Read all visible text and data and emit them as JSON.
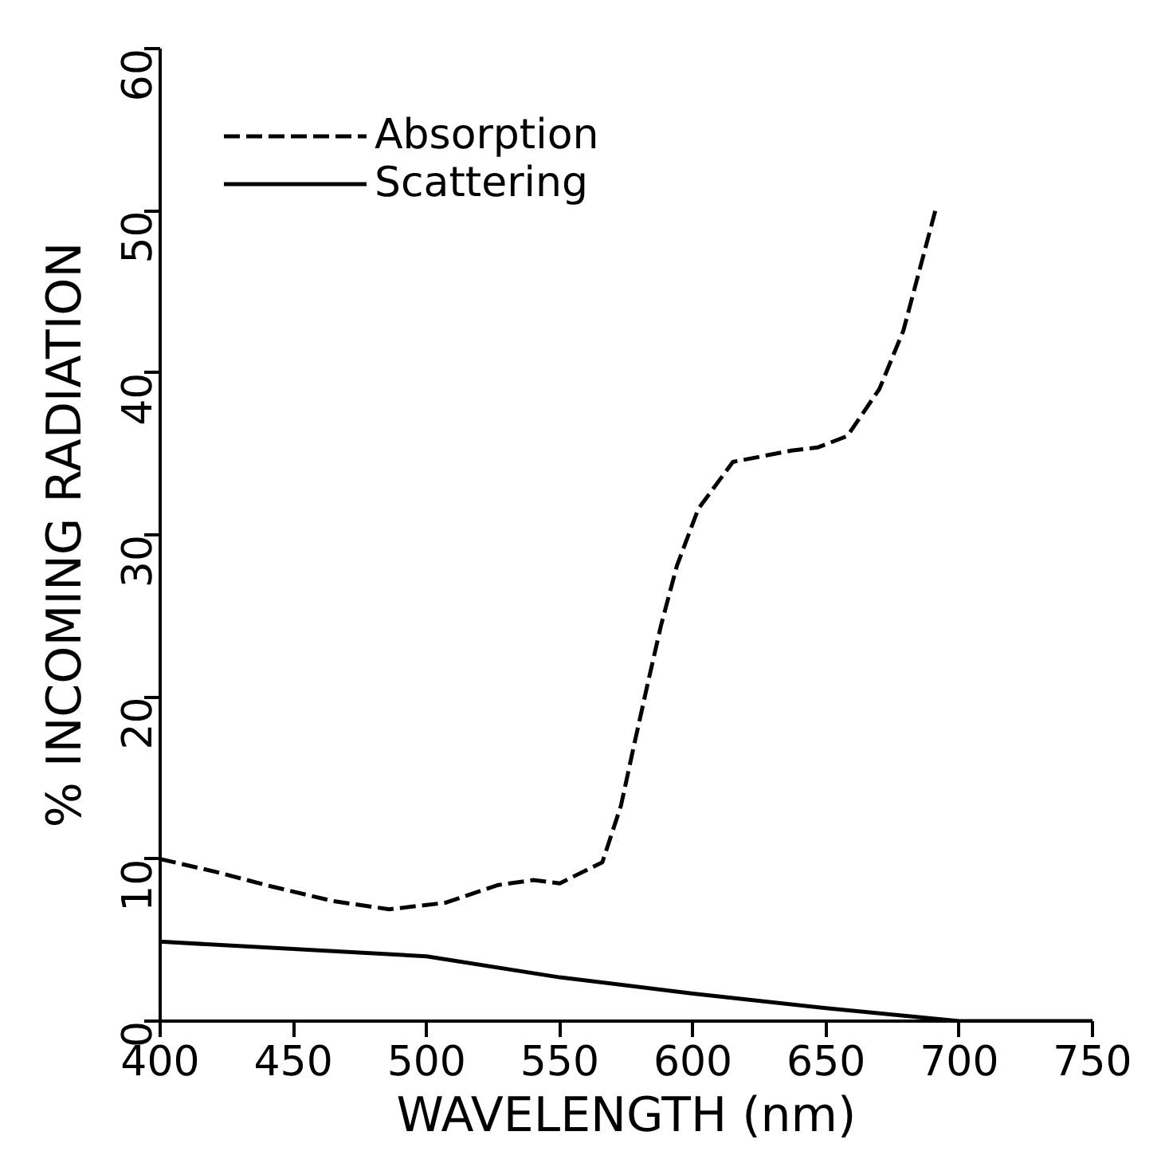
{
  "chart_data": {
    "type": "line",
    "xlabel": "WAVELENGTH (nm)",
    "ylabel": "% INCOMING RADIATION",
    "xlim": [
      400,
      750
    ],
    "ylim": [
      0,
      60
    ],
    "xticks": [
      400,
      450,
      500,
      550,
      600,
      650,
      700,
      750
    ],
    "yticks": [
      0,
      10,
      20,
      30,
      40,
      50,
      60
    ],
    "grid": false,
    "legend": "top left",
    "marker": "none",
    "series": [
      {
        "name": "Absorption",
        "color": "#000000",
        "line_style": "dashed",
        "x": [
          400,
          421,
          442,
          465,
          486,
          507,
          527,
          540,
          550,
          566,
          573,
          578,
          583,
          588,
          594,
          602,
          615,
          637,
          647,
          658,
          670,
          679,
          685,
          691
        ],
        "values": [
          10,
          9.2,
          8.3,
          7.4,
          6.9,
          7.3,
          8.4,
          8.7,
          8.5,
          9.8,
          13.3,
          17.1,
          20.8,
          24.4,
          28.1,
          31.6,
          34.5,
          35.2,
          35.4,
          36.1,
          39,
          42.6,
          46.3,
          50
        ]
      },
      {
        "name": "Scattering",
        "color": "#000000",
        "line_style": "solid",
        "x": [
          400,
          500,
          550,
          600,
          650,
          700,
          750
        ],
        "values": [
          4.9,
          4,
          2.7,
          1.7,
          0.8,
          0,
          0
        ]
      }
    ]
  }
}
